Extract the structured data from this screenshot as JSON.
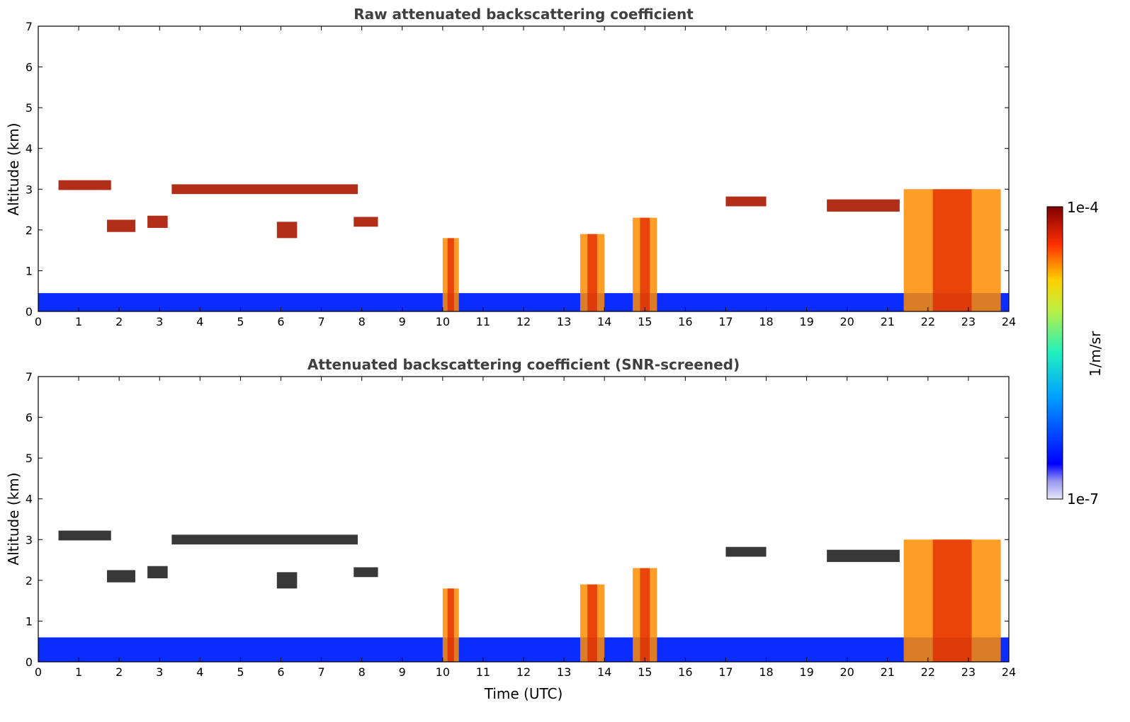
{
  "chart_data": [
    {
      "type": "heatmap",
      "title": "Raw attenuated backscattering coefficient",
      "xlabel": "",
      "ylabel": "Altitude (km)",
      "xlim": [
        0,
        24
      ],
      "ylim": [
        0,
        7
      ],
      "xticks": [
        "0",
        "1",
        "2",
        "3",
        "4",
        "5",
        "6",
        "7",
        "8",
        "9",
        "10",
        "11",
        "12",
        "13",
        "14",
        "15",
        "16",
        "17",
        "18",
        "19",
        "20",
        "21",
        "22",
        "23",
        "24"
      ],
      "yticks": [
        "0",
        "1",
        "2",
        "3",
        "4",
        "5",
        "6",
        "7"
      ],
      "features": [
        {
          "label": "cloud layer",
          "t0": 0.5,
          "t1": 1.8,
          "alt": 3.1,
          "thick": 0.12
        },
        {
          "label": "cloud layer",
          "t0": 3.3,
          "t1": 7.9,
          "alt": 3.0,
          "thick": 0.12
        },
        {
          "label": "cloud layer",
          "t0": 1.7,
          "t1": 2.4,
          "alt": 2.1,
          "thick": 0.15
        },
        {
          "label": "cloud layer",
          "t0": 2.7,
          "t1": 3.2,
          "alt": 2.2,
          "thick": 0.15
        },
        {
          "label": "cloud layer",
          "t0": 5.9,
          "t1": 6.4,
          "alt": 2.0,
          "thick": 0.2
        },
        {
          "label": "cloud layer",
          "t0": 7.8,
          "t1": 8.4,
          "alt": 2.2,
          "thick": 0.12
        },
        {
          "label": "cloud layer",
          "t0": 17.0,
          "t1": 18.0,
          "alt": 2.7,
          "thick": 0.12
        },
        {
          "label": "cloud layer",
          "t0": 19.5,
          "t1": 21.3,
          "alt": 2.6,
          "thick": 0.15
        },
        {
          "label": "precipitation",
          "t0": 13.4,
          "t1": 14.0,
          "alt": 1.9
        },
        {
          "label": "precipitation",
          "t0": 14.7,
          "t1": 15.3,
          "alt": 2.3
        },
        {
          "label": "precipitation",
          "t0": 10.0,
          "t1": 10.4,
          "alt": 1.8
        },
        {
          "label": "precipitation",
          "t0": 21.4,
          "t1": 23.8,
          "alt": 3.0
        }
      ]
    },
    {
      "type": "heatmap",
      "title": "Attenuated backscattering coefficient (SNR-screened)",
      "xlabel": "Time (UTC)",
      "ylabel": "Altitude (km)",
      "xlim": [
        0,
        24
      ],
      "ylim": [
        0,
        7
      ],
      "xticks": [
        "0",
        "1",
        "2",
        "3",
        "4",
        "5",
        "6",
        "7",
        "8",
        "9",
        "10",
        "11",
        "12",
        "13",
        "14",
        "15",
        "16",
        "17",
        "18",
        "19",
        "20",
        "21",
        "22",
        "23",
        "24"
      ],
      "yticks": [
        "0",
        "1",
        "2",
        "3",
        "4",
        "5",
        "6",
        "7"
      ]
    }
  ],
  "colorbar": {
    "label": "1/m/sr",
    "min_label": "1e-7",
    "max_label": "1e-4",
    "colormap": "jet"
  }
}
